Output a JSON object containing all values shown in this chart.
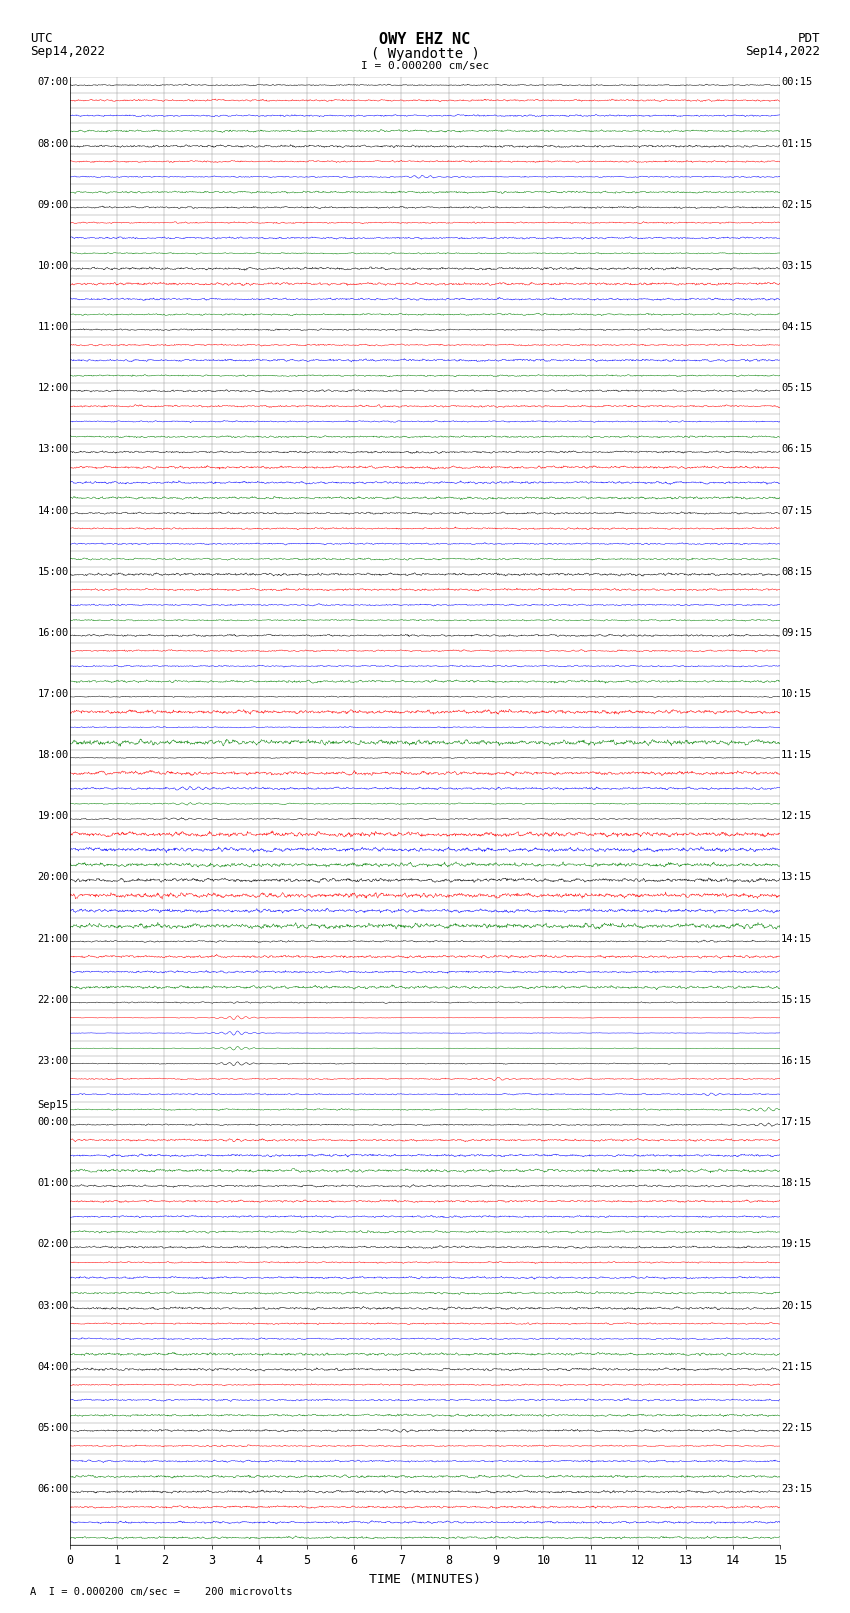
{
  "title_line1": "OWY EHZ NC",
  "title_line2": "( Wyandotte )",
  "scale_label": "I = 0.000200 cm/sec",
  "footer_label": "A  I = 0.000200 cm/sec =    200 microvolts",
  "utc_label": "UTC",
  "utc_date": "Sep14,2022",
  "pdt_label": "PDT",
  "pdt_date": "Sep14,2022",
  "xlabel": "TIME (MINUTES)",
  "utc_hour_labels": [
    "07:00",
    "08:00",
    "09:00",
    "10:00",
    "11:00",
    "12:00",
    "13:00",
    "14:00",
    "15:00",
    "16:00",
    "17:00",
    "18:00",
    "19:00",
    "20:00",
    "21:00",
    "22:00",
    "23:00",
    "00:00",
    "01:00",
    "02:00",
    "03:00",
    "04:00",
    "05:00",
    "06:00"
  ],
  "pdt_hour_labels": [
    "00:15",
    "01:15",
    "02:15",
    "03:15",
    "04:15",
    "05:15",
    "06:15",
    "07:15",
    "08:15",
    "09:15",
    "10:15",
    "11:15",
    "12:15",
    "13:15",
    "14:15",
    "15:15",
    "16:15",
    "17:15",
    "18:15",
    "19:15",
    "20:15",
    "21:15",
    "22:15",
    "23:15"
  ],
  "n_rows": 96,
  "rows_per_hour": 4,
  "minutes_per_row": 15,
  "trace_colors": [
    "black",
    "red",
    "blue",
    "green"
  ],
  "bg_color": "white",
  "grid_color": "#999999",
  "figsize": [
    8.5,
    16.13
  ],
  "dpi": 100,
  "noise_amp": 0.06,
  "event_rows": {
    "6": {
      "x": 7.4,
      "amp": 2.5,
      "color": "blue"
    },
    "40": {
      "x": 9.3,
      "amp": 1.5,
      "color": "red"
    },
    "42": {
      "x": 9.6,
      "amp": 1.2,
      "color": "black"
    },
    "44": {
      "x": 14.7,
      "amp": 1.8,
      "color": "green"
    },
    "46": {
      "x": 2.5,
      "amp": 6.0,
      "color": "black"
    },
    "47": {
      "x": 2.5,
      "amp": 5.0,
      "color": "red"
    },
    "48": {
      "x": 2.5,
      "amp": 4.0,
      "color": "blue"
    },
    "56": {
      "x": 13.5,
      "amp": 2.0,
      "color": "red"
    },
    "60": {
      "x": 3.5,
      "amp": 1.8,
      "color": "blue"
    },
    "61": {
      "x": 3.5,
      "amp": 15.0,
      "color": "green"
    },
    "62": {
      "x": 3.5,
      "amp": 18.0,
      "color": "black"
    },
    "63": {
      "x": 3.5,
      "amp": 12.0,
      "color": "red"
    },
    "64": {
      "x": 3.5,
      "amp": 8.0,
      "color": "blue"
    },
    "65": {
      "x": 9.0,
      "amp": 3.0,
      "color": "green"
    },
    "66": {
      "x": 13.5,
      "amp": 3.5,
      "color": "black"
    },
    "67": {
      "x": 14.7,
      "amp": 4.0,
      "color": "blue"
    },
    "68": {
      "x": 14.7,
      "amp": 5.0,
      "color": "red"
    },
    "69": {
      "x": 3.5,
      "amp": 3.0,
      "color": "blue"
    },
    "72": {
      "x": 7.2,
      "amp": 2.0,
      "color": "red"
    },
    "88": {
      "x": 7.0,
      "amp": 1.5,
      "color": "blue"
    },
    "89": {
      "x": 3.0,
      "amp": 1.2,
      "color": "green"
    }
  }
}
